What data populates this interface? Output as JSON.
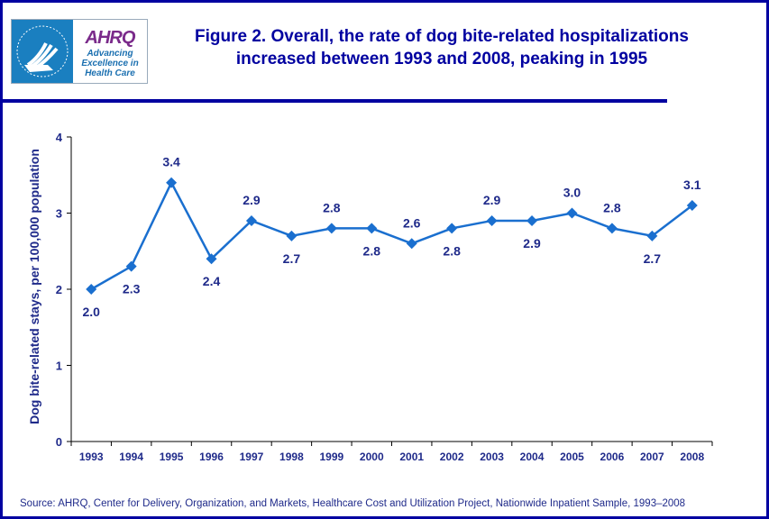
{
  "header": {
    "title_line1": "Figure 2. Overall, the rate of dog bite-related hospitalizations",
    "title_line2": "increased between 1993 and 2008, peaking in 1995",
    "logo_text": "AHRQ",
    "logo_tagline": [
      "Advancing",
      "Excellence in",
      "Health Care"
    ]
  },
  "source": "Source: AHRQ, Center for Delivery, Organization, and Markets, Healthcare Cost and Utilization Project, Nationwide Inpatient Sample, 1993–2008",
  "chart_data": {
    "type": "line",
    "title": "Figure 2. Overall, the rate of dog bite-related hospitalizations increased between 1993 and 2008, peaking in 1995",
    "xlabel": "",
    "ylabel": "Dog bite-related stays, per 100,000 population",
    "categories": [
      "1993",
      "1994",
      "1995",
      "1996",
      "1997",
      "1998",
      "1999",
      "2000",
      "2001",
      "2002",
      "2003",
      "2004",
      "2005",
      "2006",
      "2007",
      "2008"
    ],
    "values": [
      2.0,
      2.3,
      3.4,
      2.4,
      2.9,
      2.7,
      2.8,
      2.8,
      2.6,
      2.8,
      2.9,
      2.9,
      3.0,
      2.8,
      2.7,
      3.1
    ],
    "label_positions": [
      "below",
      "below",
      "above",
      "below",
      "above",
      "below",
      "above",
      "below",
      "above",
      "below",
      "above",
      "below",
      "above",
      "above",
      "below",
      "above"
    ],
    "ylim": [
      0,
      4
    ],
    "yticks": [
      0,
      1,
      2,
      3,
      4
    ],
    "grid": false,
    "marker": "diamond",
    "colors": {
      "line": "#1a6fcf",
      "text": "#1f2a8a",
      "frame": "#0000a0"
    }
  }
}
